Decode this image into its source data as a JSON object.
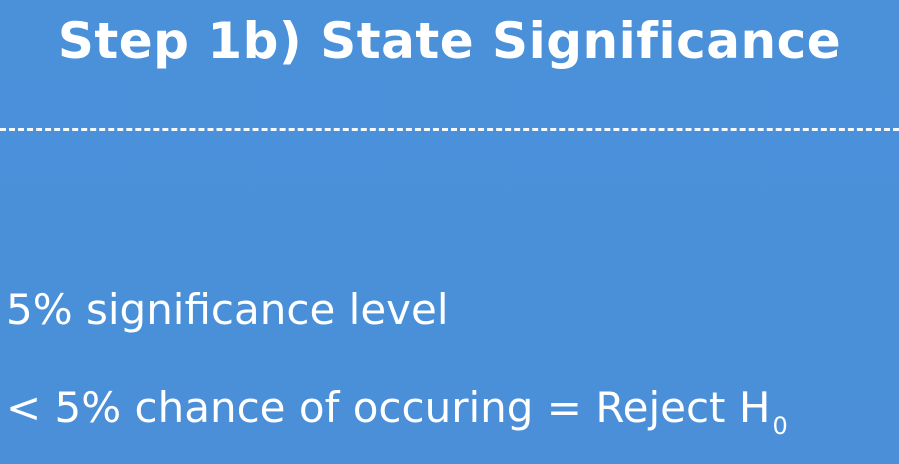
{
  "slide": {
    "title": "Step 1b) State Significance",
    "lines": [
      {
        "text": "5% significance level"
      },
      {
        "text": "< 5% chance of occuring = Reject H",
        "subscript": "0"
      }
    ],
    "colors": {
      "background": "#4a90d9",
      "text": "#ffffff"
    }
  }
}
